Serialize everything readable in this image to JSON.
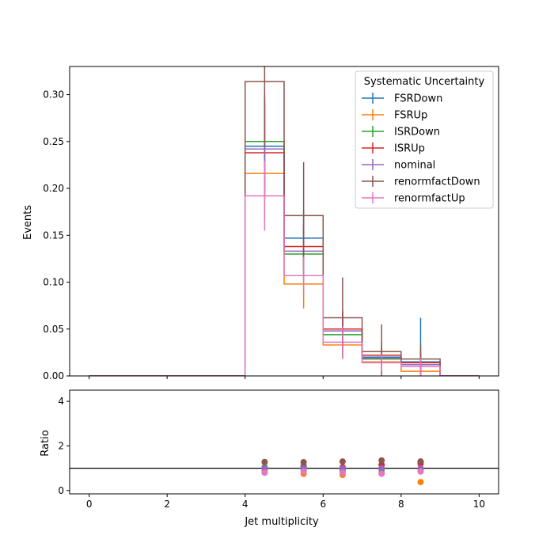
{
  "chart_data": {
    "type": "line",
    "bin_edges": [
      0,
      1,
      2,
      3,
      4,
      5,
      6,
      7,
      8,
      9,
      10
    ],
    "x_ticks": [
      0,
      2,
      4,
      6,
      8,
      10
    ],
    "xlabel": "Jet multiplicity",
    "top_panel": {
      "ylabel": "Events",
      "ylim": [
        0,
        0.33
      ],
      "y_ticks": [
        0.0,
        0.05,
        0.1,
        0.15,
        0.2,
        0.25,
        0.3
      ],
      "y_tick_labels": [
        "0.00",
        "0.05",
        "0.10",
        "0.15",
        "0.20",
        "0.25",
        "0.30"
      ]
    },
    "ratio_panel": {
      "ylabel": "Ratio",
      "ylim": [
        -0.15,
        4.5
      ],
      "y_ticks": [
        0,
        2,
        4
      ],
      "y_tick_labels": [
        "0",
        "2",
        "4"
      ],
      "reference_line": 1
    },
    "legend": {
      "title": "Systematic Uncertainty",
      "position": "top-right"
    },
    "series": [
      {
        "name": "FSRDown",
        "color": "#1f77b4",
        "values": [
          0,
          0,
          0,
          0,
          0.245,
          0.147,
          0.05,
          0.02,
          0.015,
          0
        ],
        "errors": [
          0,
          0,
          0,
          0,
          0.05,
          0.03,
          0.02,
          0.015,
          0.047,
          0
        ],
        "ratio": [
          1.0,
          1.1,
          1.0,
          1.0,
          1.3
        ]
      },
      {
        "name": "FSRUp",
        "color": "#ff7f0e",
        "values": [
          0,
          0,
          0,
          0,
          0.216,
          0.098,
          0.033,
          0.015,
          0.005,
          0
        ],
        "errors": [
          0,
          0,
          0,
          0,
          0.05,
          0.026,
          0.015,
          0.01,
          0.006,
          0
        ],
        "ratio": [
          0.9,
          0.75,
          0.7,
          0.8,
          0.38
        ]
      },
      {
        "name": "ISRDown",
        "color": "#2ca02c",
        "values": [
          0,
          0,
          0,
          0,
          0.25,
          0.13,
          0.044,
          0.018,
          0.012,
          0
        ],
        "errors": [
          0,
          0,
          0,
          0,
          0.05,
          0.028,
          0.016,
          0.012,
          0.01,
          0
        ],
        "ratio": [
          1.05,
          0.95,
          0.9,
          0.95,
          0.95
        ]
      },
      {
        "name": "ISRUp",
        "color": "#d62728",
        "values": [
          0,
          0,
          0,
          0,
          0.238,
          0.138,
          0.05,
          0.022,
          0.014,
          0
        ],
        "errors": [
          0,
          0,
          0,
          0,
          0.05,
          0.029,
          0.018,
          0.014,
          0.012,
          0
        ],
        "ratio": [
          1.0,
          1.05,
          1.05,
          1.15,
          1.2
        ]
      },
      {
        "name": "nominal",
        "color": "#9467bd",
        "values": [
          0,
          0,
          0,
          0,
          0.242,
          0.133,
          0.048,
          0.019,
          0.012,
          0
        ],
        "errors": [
          0,
          0,
          0,
          0,
          0.05,
          0.028,
          0.017,
          0.012,
          0.01,
          0
        ],
        "ratio": [
          1.0,
          1.0,
          1.0,
          1.0,
          1.0
        ]
      },
      {
        "name": "renormfactDown",
        "color": "#8c564b",
        "values": [
          0,
          0,
          0,
          0,
          0.314,
          0.171,
          0.062,
          0.026,
          0.018,
          0
        ],
        "errors": [
          0,
          0,
          0,
          0,
          0.07,
          0.057,
          0.043,
          0.029,
          0.015,
          0
        ],
        "ratio": [
          1.28,
          1.27,
          1.3,
          1.35,
          1.3
        ]
      },
      {
        "name": "renormfactUp",
        "color": "#e377c2",
        "values": [
          0,
          0,
          0,
          0,
          0.192,
          0.107,
          0.036,
          0.014,
          0.01,
          0
        ],
        "errors": [
          0,
          0,
          0,
          0,
          0.037,
          0.02,
          0.017,
          0.009,
          0.009,
          0
        ],
        "ratio": [
          0.8,
          0.85,
          0.8,
          0.75,
          0.85
        ]
      }
    ]
  }
}
